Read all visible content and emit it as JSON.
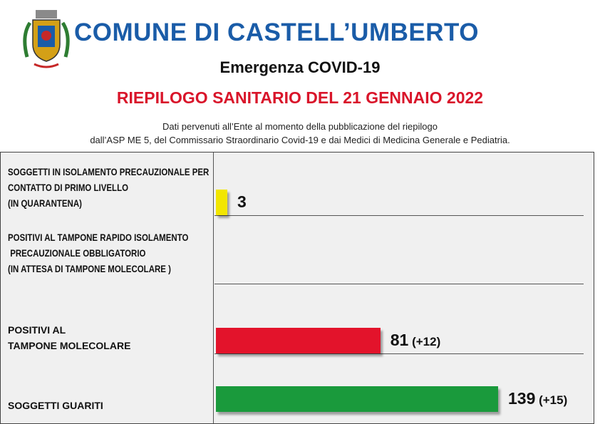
{
  "header": {
    "title": "COMUNE DI CASTELL’UMBERTO",
    "subtitle": "Emergenza COVID-19",
    "report_title": "RIEPILOGO SANITARIO DEL 21 GENNAIO 2022",
    "note_line1": "Dati pervenuti all’Ente al momento della pubblicazione del riepilogo",
    "note_line2": "dall’ASP ME 5, del Commissario Straordinario Covid-19 e dai Medici di Medicina Generale e Pediatria.",
    "crest_icon": "coat-of-arms-icon"
  },
  "chart_data": {
    "type": "bar",
    "orientation": "horizontal",
    "categories": [
      "SOGGETTI IN ISOLAMENTO PRECAUZIONALE PER CONTATTO DI PRIMO LIVELLO (IN QUARANTENA)",
      "POSITIVI AL TAMPONE RAPIDO ISOLAMENTO PRECAUZIONALE OBBLIGATORIO (IN ATTESA DI TAMPONE MOLECOLARE )",
      "POSITIVI AL TAMPONE MOLECOLARE",
      "SOGGETTI GUARITI"
    ],
    "label_lines": [
      [
        "SOGGETTI IN ISOLAMENTO PRECAUZIONALE PER",
        "CONTATTO DI PRIMO LIVELLO",
        "(IN QUARANTENA)"
      ],
      [
        "POSITIVI AL TAMPONE RAPIDO ISOLAMENTO",
        " PRECAUZIONALE OBBLIGATORIO",
        "(IN ATTESA DI TAMPONE MOLECOLARE )"
      ],
      [
        "POSITIVI AL",
        "TAMPONE MOLECOLARE"
      ],
      [
        "SOGGETTI GUARITI"
      ]
    ],
    "values": [
      3,
      null,
      81,
      139
    ],
    "value_labels": [
      "3",
      "",
      "81",
      "139"
    ],
    "delta_labels": [
      "",
      "",
      "(+12)",
      "(+15)"
    ],
    "colors": [
      "#f2e600",
      "#cccccc",
      "#e3132b",
      "#1a9a3c"
    ],
    "xlim": [
      0,
      139
    ],
    "grid": false
  }
}
